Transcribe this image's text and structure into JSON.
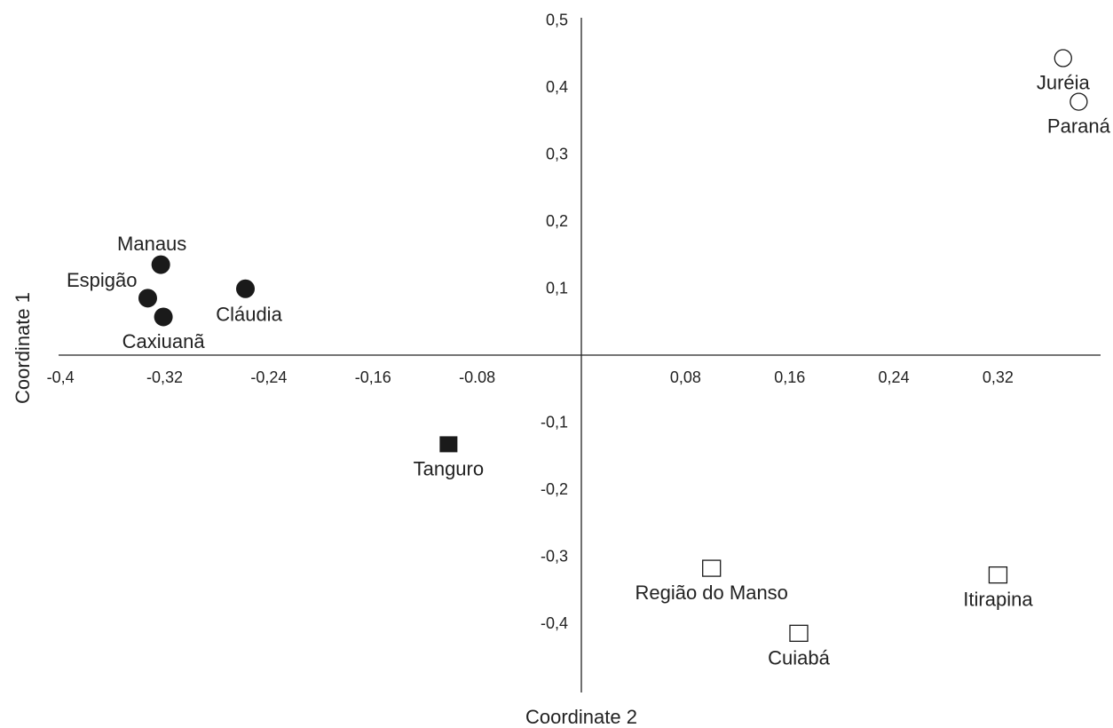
{
  "chart_data": {
    "type": "scatter",
    "xlabel": "Coordinate 2",
    "ylabel": "Coordinate 1",
    "xlim": [
      -0.4,
      0.4
    ],
    "ylim": [
      -0.5,
      0.5
    ],
    "x_ticks": [
      {
        "value": -0.4,
        "label": "-0,4"
      },
      {
        "value": -0.32,
        "label": "-0,32"
      },
      {
        "value": -0.24,
        "label": "-0,24"
      },
      {
        "value": -0.16,
        "label": "-0,16"
      },
      {
        "value": -0.08,
        "label": "-0.08"
      },
      {
        "value": 0.08,
        "label": "0,08"
      },
      {
        "value": 0.16,
        "label": "0,16"
      },
      {
        "value": 0.24,
        "label": "0,24"
      },
      {
        "value": 0.32,
        "label": "0,32"
      }
    ],
    "y_ticks": [
      {
        "value": 0.5,
        "label": "0,5"
      },
      {
        "value": 0.4,
        "label": "0,4"
      },
      {
        "value": 0.3,
        "label": "0,3"
      },
      {
        "value": 0.2,
        "label": "0,2"
      },
      {
        "value": 0.1,
        "label": "0,1"
      },
      {
        "value": -0.1,
        "label": "-0,1"
      },
      {
        "value": -0.2,
        "label": "-0,2"
      },
      {
        "value": -0.3,
        "label": "-0,3"
      },
      {
        "value": -0.4,
        "label": "-0,4"
      }
    ],
    "grid": false,
    "points": [
      {
        "label": "Juréia",
        "x": 0.37,
        "y": 0.443,
        "marker": "circle-open",
        "label_pos": "below"
      },
      {
        "label": "Paraná",
        "x": 0.382,
        "y": 0.378,
        "marker": "circle-open",
        "label_pos": "below"
      },
      {
        "label": "Manaus",
        "x": -0.323,
        "y": 0.135,
        "marker": "circle-filled",
        "label_pos": "above"
      },
      {
        "label": "Espigão",
        "x": -0.333,
        "y": 0.085,
        "marker": "circle-filled",
        "label_pos": "left"
      },
      {
        "label": "Caxiuanã",
        "x": -0.321,
        "y": 0.057,
        "marker": "circle-filled",
        "label_pos": "below"
      },
      {
        "label": "Cláudia",
        "x": -0.258,
        "y": 0.099,
        "marker": "circle-filled",
        "label_pos": "below-right"
      },
      {
        "label": "Tanguro",
        "x": -0.102,
        "y": -0.133,
        "marker": "square-filled",
        "label_pos": "below"
      },
      {
        "label": "Região do Manso",
        "x": 0.1,
        "y": -0.318,
        "marker": "square-open",
        "label_pos": "below"
      },
      {
        "label": "Cuiabá",
        "x": 0.167,
        "y": -0.415,
        "marker": "square-open",
        "label_pos": "below"
      },
      {
        "label": "Itirapina",
        "x": 0.32,
        "y": -0.328,
        "marker": "square-open",
        "label_pos": "below"
      }
    ],
    "colors": {
      "marker": "#1a1a1a",
      "axis": "#222222",
      "text": "#222222"
    }
  }
}
